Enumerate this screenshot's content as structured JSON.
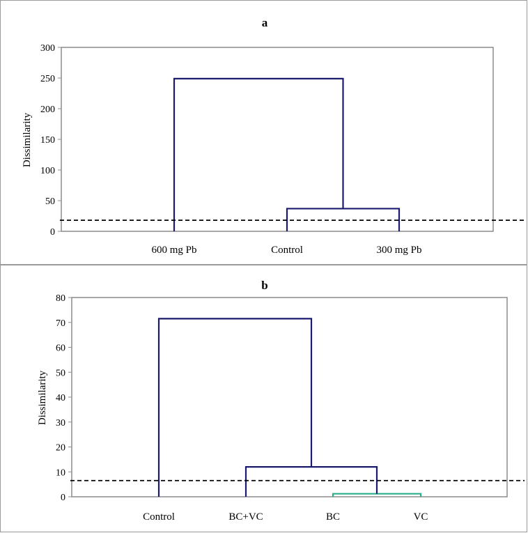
{
  "chart_data": [
    {
      "type": "dendrogram",
      "title": "a",
      "ylabel": "Dissimilarity",
      "ylim": [
        0,
        300
      ],
      "yticks": [
        0,
        50,
        100,
        150,
        200,
        250,
        300
      ],
      "categories": [
        "600 mg Pb",
        "Control",
        "300 mg Pb"
      ],
      "merges": [
        {
          "left": "Control",
          "right": "300 mg Pb",
          "height": 37,
          "color": "#1a1a6e"
        },
        {
          "left": "600 mg Pb",
          "right": "Control + 300 mg Pb",
          "height": 249,
          "color": "#1a1a6e"
        }
      ],
      "cutoff": 18,
      "grid": false
    },
    {
      "type": "dendrogram",
      "title": "b",
      "ylabel": "Dissimilarity",
      "ylim": [
        0,
        80
      ],
      "yticks": [
        0,
        10,
        20,
        30,
        40,
        50,
        60,
        70,
        80
      ],
      "categories": [
        "Control",
        "BC+VC",
        "BC",
        "VC"
      ],
      "merges": [
        {
          "left": "BC",
          "right": "VC",
          "height": 1.2,
          "color": "#2ab08a"
        },
        {
          "left": "BC+VC",
          "right": "BC + VC",
          "height": 12,
          "color": "#1a1a6e"
        },
        {
          "left": "Control",
          "right": "BC+VC + BC + VC",
          "height": 71.5,
          "color": "#1a1a6e"
        }
      ],
      "cutoff": 6.5,
      "grid": false
    }
  ]
}
